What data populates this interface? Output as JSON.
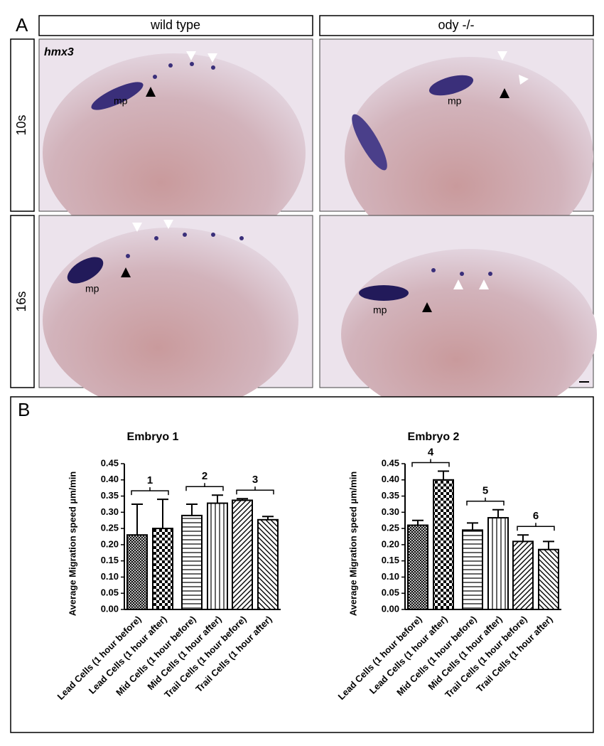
{
  "panel_a": {
    "label": "A",
    "columns": [
      "wild type",
      "ody -/-"
    ],
    "rows": [
      "10s",
      "16s"
    ],
    "gene": "hmx3",
    "annotation": "mp"
  },
  "panel_b": {
    "label": "B"
  },
  "chart_data": [
    {
      "type": "bar",
      "title": "Embryo 1",
      "y_label": "Average Migration speed µm/min",
      "categories": [
        "Lead Cells (1 hour before)",
        "Lead Cells (1 hour after)",
        "Mid Cells (1 hour before)",
        "Mid Cells (1 hour after)",
        "Trail Cells (1 hour before)",
        "Trail Cells (1 hour after)"
      ],
      "values": [
        0.23,
        0.25,
        0.29,
        0.328,
        0.337,
        0.277
      ],
      "errors": [
        0.095,
        0.09,
        0.035,
        0.025,
        0.005,
        0.01
      ],
      "fill_patterns": [
        "crosshatch",
        "checker",
        "horizontal",
        "vertical",
        "diagonal-up",
        "diagonal-down"
      ],
      "groups": [
        "1",
        "2",
        "3"
      ],
      "ylim": [
        0,
        0.45
      ],
      "yticks": [
        {
          "value": 0,
          "label": "0.00"
        },
        {
          "value": 0.05,
          "label": "0.05"
        },
        {
          "value": 0.1,
          "label": "0.10"
        },
        {
          "value": 0.15,
          "label": "0.15"
        },
        {
          "value": 0.2,
          "label": "0.20"
        },
        {
          "value": 0.25,
          "label": "0.25"
        },
        {
          "value": 0.3,
          "label": "0.30"
        },
        {
          "value": 0.35,
          "label": "0.35"
        },
        {
          "value": 0.4,
          "label": "0.40"
        },
        {
          "value": 0.45,
          "label": "0.45"
        }
      ]
    },
    {
      "type": "bar",
      "title": "Embryo 2",
      "y_label": "Average Migration speed µm/min",
      "categories": [
        "Lead Cells (1 hour before)",
        "Lead Cells (1 hour after)",
        "Mid Cells (1 hour before)",
        "Mid Cells (1 hour after)",
        "Trail Cells (1 hour before)",
        "Trail Cells (1 hour after)"
      ],
      "values": [
        0.26,
        0.4,
        0.245,
        0.283,
        0.21,
        0.185
      ],
      "errors": [
        0.015,
        0.027,
        0.022,
        0.025,
        0.02,
        0.025
      ],
      "fill_patterns": [
        "crosshatch",
        "checker",
        "horizontal",
        "vertical",
        "diagonal-up",
        "diagonal-down"
      ],
      "groups": [
        "4",
        "5",
        "6"
      ],
      "ylim": [
        0,
        0.45
      ],
      "yticks": [
        {
          "value": 0,
          "label": "0.00"
        },
        {
          "value": 0.05,
          "label": "0.05"
        },
        {
          "value": 0.1,
          "label": "0.10"
        },
        {
          "value": 0.15,
          "label": "0.15"
        },
        {
          "value": 0.2,
          "label": "0.20"
        },
        {
          "value": 0.25,
          "label": "0.25"
        },
        {
          "value": 0.3,
          "label": "0.30"
        },
        {
          "value": 0.35,
          "label": "0.35"
        },
        {
          "value": 0.4,
          "label": "0.40"
        },
        {
          "value": 0.45,
          "label": "0.45"
        }
      ]
    }
  ]
}
